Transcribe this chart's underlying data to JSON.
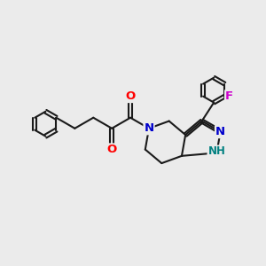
{
  "background_color": "#ebebeb",
  "bond_color": "#1a1a1a",
  "bond_width": 1.5,
  "atom_colors": {
    "O": "#ff0000",
    "N": "#0000cc",
    "F": "#cc00cc",
    "NH": "#008080",
    "C": "#1a1a1a"
  },
  "font_size": 8.5,
  "figsize": [
    3.0,
    3.0
  ],
  "dpi": 100,
  "xlim": [
    0,
    10
  ],
  "ylim": [
    0,
    10
  ]
}
